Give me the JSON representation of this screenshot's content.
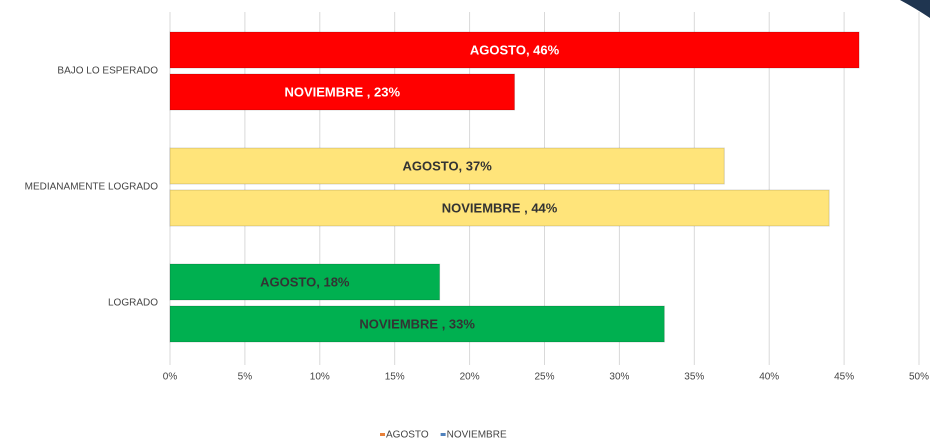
{
  "chart_data": {
    "type": "hbar",
    "categories": [
      "BAJO LO ESPERADO",
      "MEDIANAMENTE LOGRADO",
      "LOGRADO"
    ],
    "category_colors": [
      "#ff0000",
      "#ffe47a",
      "#00b050"
    ],
    "category_label_colors": [
      "#ffffff",
      "#333333",
      "#333333"
    ],
    "series": [
      {
        "name": "AGOSTO",
        "color": "#e8813a",
        "values": [
          46,
          37,
          18
        ],
        "value_labels": [
          "AGOSTO, 46%",
          "AGOSTO, 37%",
          "AGOSTO, 18%"
        ]
      },
      {
        "name": "NOVIEMBRE",
        "color": "#4f81bd",
        "values": [
          23,
          44,
          33
        ],
        "value_labels": [
          "NOVIEMBRE , 23%",
          "NOVIEMBRE , 44%",
          "NOVIEMBRE , 33%"
        ]
      }
    ],
    "xlim": [
      0,
      50
    ],
    "xticks": [
      {
        "value": 0,
        "label": "0%"
      },
      {
        "value": 5,
        "label": "5%"
      },
      {
        "value": 10,
        "label": "10%"
      },
      {
        "value": 15,
        "label": "15%"
      },
      {
        "value": 20,
        "label": "20%"
      },
      {
        "value": 25,
        "label": "25%"
      },
      {
        "value": 30,
        "label": "30%"
      },
      {
        "value": 35,
        "label": "35%"
      },
      {
        "value": 40,
        "label": "40%"
      },
      {
        "value": 45,
        "label": "45%"
      },
      {
        "value": 50,
        "label": "50%"
      }
    ],
    "grid": true,
    "legend": "bottom"
  }
}
